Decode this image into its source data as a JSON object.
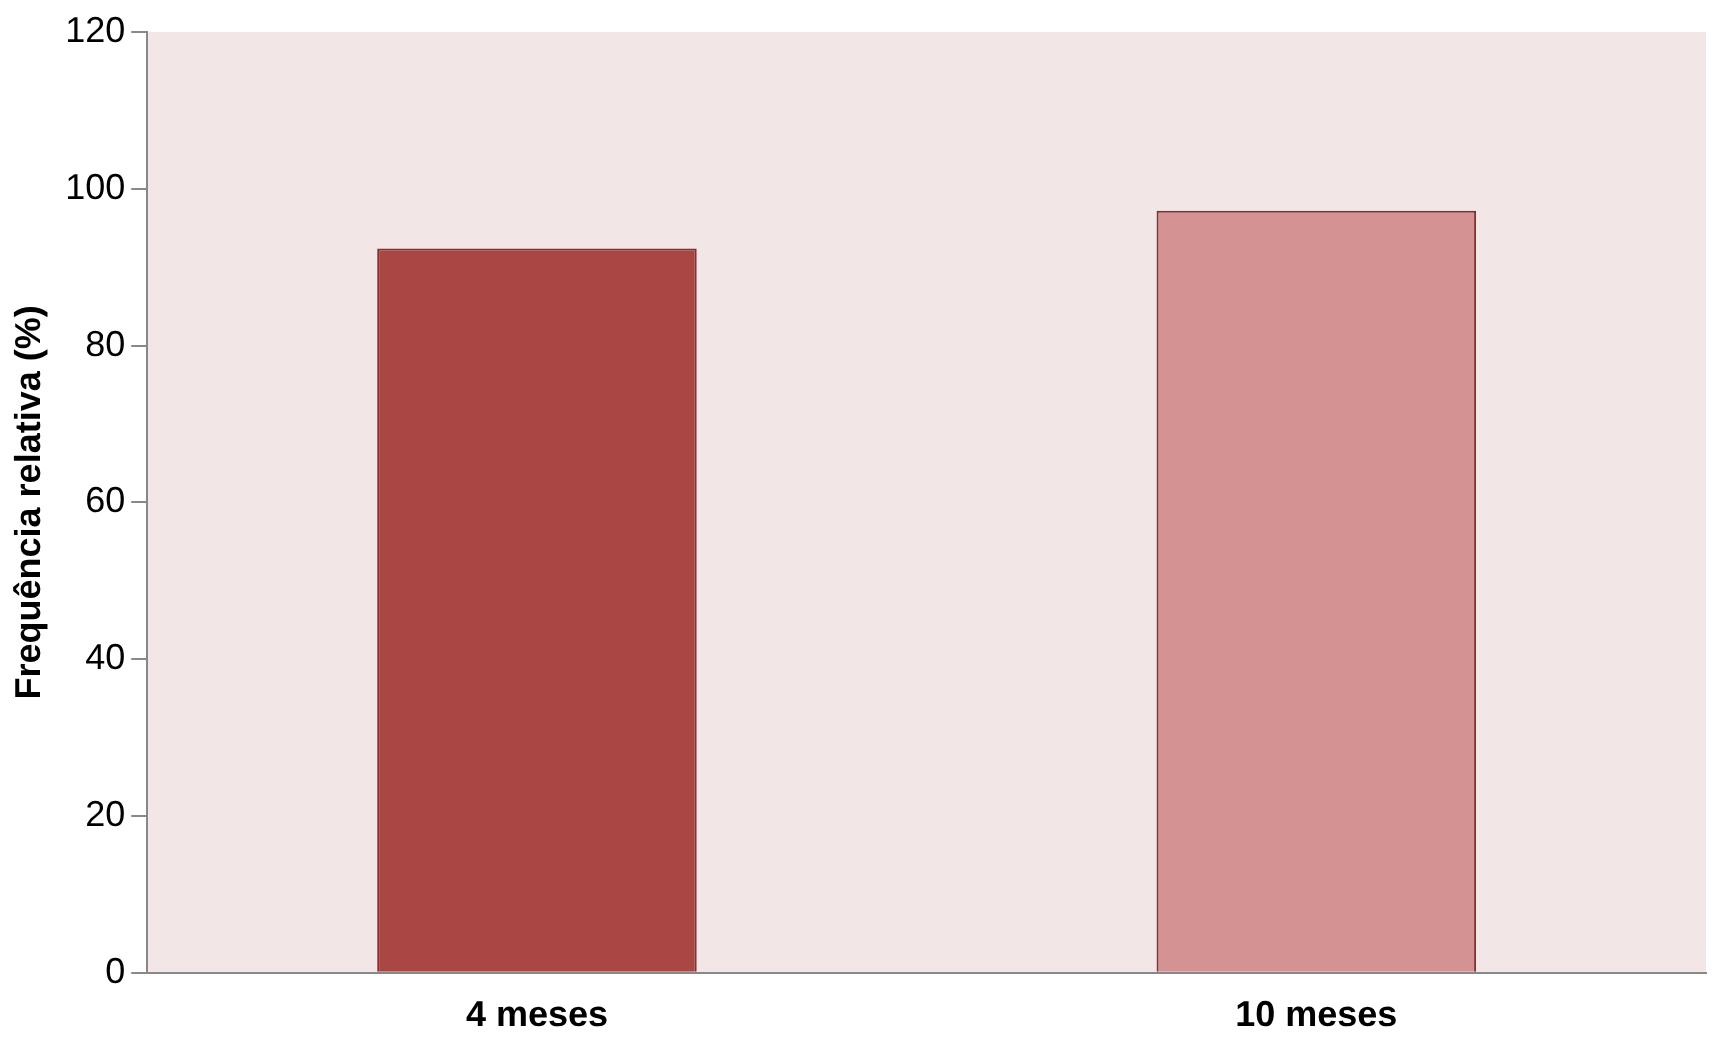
{
  "chart_data": {
    "type": "bar",
    "ylabel": "Frequência relativa (%)",
    "categories": [
      "4 meses",
      "10 meses"
    ],
    "values": [
      92.4,
      97.2
    ],
    "colors": [
      "#a84744",
      "#d49392"
    ],
    "ylim": [
      0,
      120
    ],
    "yticks": [
      0,
      20,
      40,
      60,
      80,
      100,
      120
    ],
    "grid": false,
    "legend": false
  }
}
